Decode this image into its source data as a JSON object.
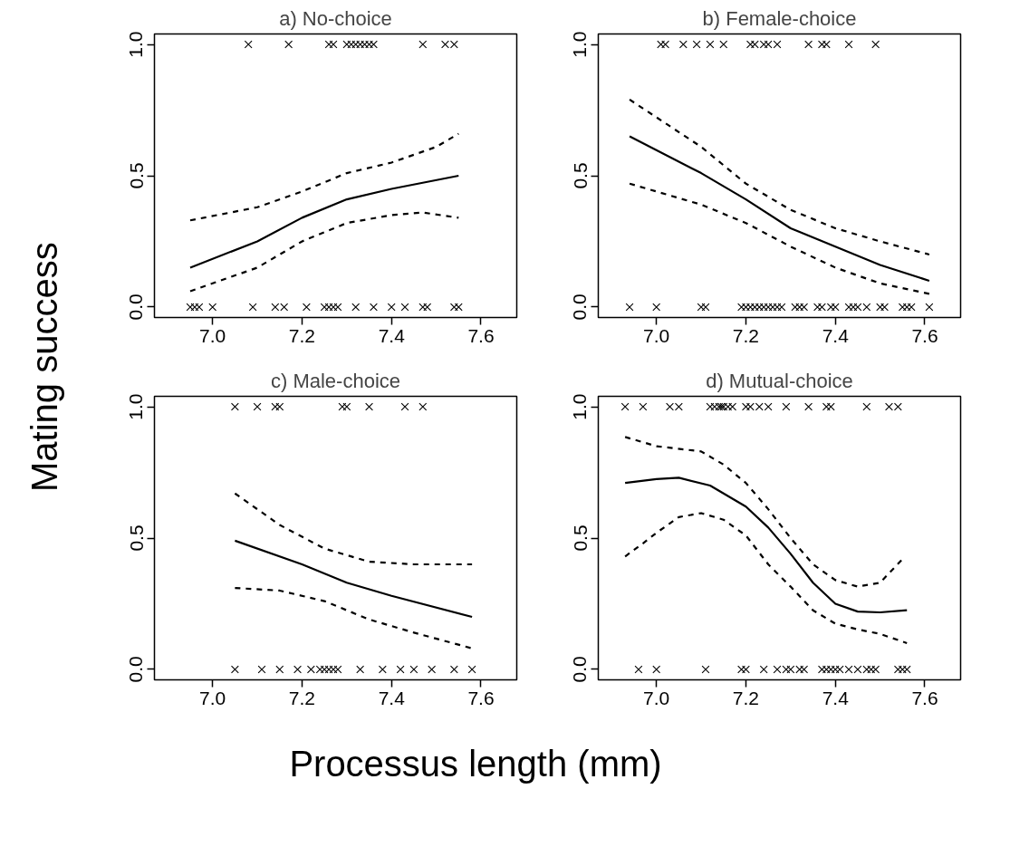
{
  "chart_data": [
    {
      "type": "line",
      "title": "a) No-choice",
      "ylabel": "Mating success",
      "xlim": [
        6.87,
        7.68
      ],
      "ylim": [
        -0.04,
        1.04
      ],
      "xticks": [
        {
          "value": 7.0,
          "label": "7.0"
        },
        {
          "value": 7.2,
          "label": "7.2"
        },
        {
          "value": 7.4,
          "label": "7.4"
        },
        {
          "value": 7.6,
          "label": "7.6"
        }
      ],
      "yticks": [
        {
          "value": 0,
          "label": "0.0"
        },
        {
          "value": 0.5,
          "label": "0.5"
        },
        {
          "value": 1,
          "label": "1.0"
        }
      ],
      "grid": false,
      "series": [
        {
          "type": "scatter",
          "marker": "cross",
          "color": "#000000",
          "x": [
            7.08,
            7.17,
            7.26,
            7.27,
            7.3,
            7.31,
            7.32,
            7.33,
            7.34,
            7.35,
            7.36,
            7.47,
            7.52,
            7.54
          ],
          "values": [
            1,
            1,
            1,
            1,
            1,
            1,
            1,
            1,
            1,
            1,
            1,
            1,
            1,
            1
          ]
        },
        {
          "type": "scatter",
          "marker": "cross",
          "color": "#000000",
          "x": [
            6.95,
            6.96,
            6.97,
            7.0,
            7.09,
            7.14,
            7.16,
            7.21,
            7.25,
            7.26,
            7.27,
            7.28,
            7.32,
            7.36,
            7.4,
            7.43,
            7.47,
            7.48,
            7.54,
            7.55
          ],
          "values": [
            0,
            0,
            0,
            0,
            0,
            0,
            0,
            0,
            0,
            0,
            0,
            0,
            0,
            0,
            0,
            0,
            0,
            0,
            0,
            0
          ]
        },
        {
          "line_style": "solid",
          "color": "#000000",
          "x": [
            6.95,
            7.1,
            7.2,
            7.3,
            7.4,
            7.55
          ],
          "values": [
            0.15,
            0.25,
            0.34,
            0.41,
            0.45,
            0.5
          ]
        },
        {
          "line_style": "dashed",
          "color": "#000000",
          "x": [
            6.95,
            7.1,
            7.2,
            7.3,
            7.4,
            7.5,
            7.55
          ],
          "values": [
            0.33,
            0.38,
            0.44,
            0.51,
            0.55,
            0.61,
            0.66
          ]
        },
        {
          "line_style": "dashed",
          "color": "#000000",
          "x": [
            6.95,
            7.1,
            7.2,
            7.3,
            7.4,
            7.47,
            7.55
          ],
          "values": [
            0.06,
            0.15,
            0.25,
            0.32,
            0.35,
            0.36,
            0.34
          ]
        }
      ]
    },
    {
      "type": "line",
      "title": "b) Female-choice",
      "xlim": [
        6.87,
        7.68
      ],
      "ylim": [
        -0.04,
        1.04
      ],
      "xticks": [
        {
          "value": 7.0,
          "label": "7.0"
        },
        {
          "value": 7.2,
          "label": "7.2"
        },
        {
          "value": 7.4,
          "label": "7.4"
        },
        {
          "value": 7.6,
          "label": "7.6"
        }
      ],
      "yticks": [
        {
          "value": 0,
          "label": "0.0"
        },
        {
          "value": 0.5,
          "label": "0.5"
        },
        {
          "value": 1,
          "label": "1.0"
        }
      ],
      "grid": false,
      "series": [
        {
          "type": "scatter",
          "marker": "cross",
          "color": "#000000",
          "x": [
            7.01,
            7.02,
            7.06,
            7.09,
            7.12,
            7.15,
            7.21,
            7.22,
            7.24,
            7.25,
            7.27,
            7.34,
            7.37,
            7.38,
            7.43,
            7.49
          ],
          "values": [
            1,
            1,
            1,
            1,
            1,
            1,
            1,
            1,
            1,
            1,
            1,
            1,
            1,
            1,
            1,
            1
          ]
        },
        {
          "type": "scatter",
          "marker": "cross",
          "color": "#000000",
          "x": [
            6.94,
            7.0,
            7.1,
            7.11,
            7.19,
            7.2,
            7.21,
            7.22,
            7.23,
            7.24,
            7.25,
            7.26,
            7.27,
            7.28,
            7.31,
            7.32,
            7.33,
            7.36,
            7.37,
            7.39,
            7.4,
            7.43,
            7.44,
            7.45,
            7.47,
            7.5,
            7.51,
            7.55,
            7.56,
            7.57,
            7.61
          ],
          "values": [
            0,
            0,
            0,
            0,
            0,
            0,
            0,
            0,
            0,
            0,
            0,
            0,
            0,
            0,
            0,
            0,
            0,
            0,
            0,
            0,
            0,
            0,
            0,
            0,
            0,
            0,
            0,
            0,
            0,
            0,
            0
          ]
        },
        {
          "line_style": "solid",
          "color": "#000000",
          "x": [
            6.94,
            7.1,
            7.2,
            7.3,
            7.4,
            7.5,
            7.61
          ],
          "values": [
            0.65,
            0.51,
            0.41,
            0.3,
            0.23,
            0.16,
            0.1
          ]
        },
        {
          "line_style": "dashed",
          "color": "#000000",
          "x": [
            6.94,
            7.1,
            7.2,
            7.3,
            7.4,
            7.5,
            7.61
          ],
          "values": [
            0.79,
            0.61,
            0.47,
            0.37,
            0.3,
            0.25,
            0.2
          ]
        },
        {
          "line_style": "dashed",
          "color": "#000000",
          "x": [
            6.94,
            7.1,
            7.2,
            7.3,
            7.4,
            7.5,
            7.61
          ],
          "values": [
            0.47,
            0.39,
            0.32,
            0.23,
            0.15,
            0.09,
            0.05
          ]
        }
      ]
    },
    {
      "type": "line",
      "title": "c) Male-choice",
      "xlabel": "Processus length (mm)",
      "xlim": [
        6.87,
        7.68
      ],
      "ylim": [
        -0.04,
        1.04
      ],
      "xticks": [
        {
          "value": 7.0,
          "label": "7.0"
        },
        {
          "value": 7.2,
          "label": "7.2"
        },
        {
          "value": 7.4,
          "label": "7.4"
        },
        {
          "value": 7.6,
          "label": "7.6"
        }
      ],
      "yticks": [
        {
          "value": 0,
          "label": "0.0"
        },
        {
          "value": 0.5,
          "label": "0.5"
        },
        {
          "value": 1,
          "label": "1.0"
        }
      ],
      "grid": false,
      "series": [
        {
          "type": "scatter",
          "marker": "cross",
          "color": "#000000",
          "x": [
            7.05,
            7.1,
            7.14,
            7.15,
            7.29,
            7.3,
            7.35,
            7.43,
            7.47
          ],
          "values": [
            1,
            1,
            1,
            1,
            1,
            1,
            1,
            1,
            1
          ]
        },
        {
          "type": "scatter",
          "marker": "cross",
          "color": "#000000",
          "x": [
            7.05,
            7.11,
            7.15,
            7.19,
            7.22,
            7.24,
            7.25,
            7.26,
            7.27,
            7.28,
            7.33,
            7.38,
            7.42,
            7.45,
            7.49,
            7.54,
            7.58
          ],
          "values": [
            0,
            0,
            0,
            0,
            0,
            0,
            0,
            0,
            0,
            0,
            0,
            0,
            0,
            0,
            0,
            0,
            0
          ]
        },
        {
          "line_style": "solid",
          "color": "#000000",
          "x": [
            7.05,
            7.2,
            7.3,
            7.4,
            7.58
          ],
          "values": [
            0.49,
            0.4,
            0.33,
            0.28,
            0.2
          ]
        },
        {
          "line_style": "dashed",
          "color": "#000000",
          "x": [
            7.05,
            7.15,
            7.25,
            7.35,
            7.45,
            7.58
          ],
          "values": [
            0.67,
            0.55,
            0.46,
            0.41,
            0.4,
            0.4
          ]
        },
        {
          "line_style": "dashed",
          "color": "#000000",
          "x": [
            7.05,
            7.15,
            7.25,
            7.35,
            7.45,
            7.58
          ],
          "values": [
            0.31,
            0.3,
            0.26,
            0.19,
            0.14,
            0.08
          ]
        }
      ]
    },
    {
      "type": "line",
      "title": "d) Mutual-choice",
      "xlim": [
        6.87,
        7.68
      ],
      "ylim": [
        -0.04,
        1.04
      ],
      "xticks": [
        {
          "value": 7.0,
          "label": "7.0"
        },
        {
          "value": 7.2,
          "label": "7.2"
        },
        {
          "value": 7.4,
          "label": "7.4"
        },
        {
          "value": 7.6,
          "label": "7.6"
        }
      ],
      "yticks": [
        {
          "value": 0,
          "label": "0.0"
        },
        {
          "value": 0.5,
          "label": "0.5"
        },
        {
          "value": 1,
          "label": "1.0"
        }
      ],
      "grid": false,
      "series": [
        {
          "type": "scatter",
          "marker": "cross",
          "color": "#000000",
          "x": [
            6.93,
            6.97,
            7.03,
            7.05,
            7.12,
            7.13,
            7.14,
            7.145,
            7.15,
            7.16,
            7.17,
            7.2,
            7.21,
            7.23,
            7.25,
            7.29,
            7.34,
            7.38,
            7.39,
            7.47,
            7.52,
            7.54
          ],
          "values": [
            1,
            1,
            1,
            1,
            1,
            1,
            1,
            1,
            1,
            1,
            1,
            1,
            1,
            1,
            1,
            1,
            1,
            1,
            1,
            1,
            1,
            1
          ]
        },
        {
          "type": "scatter",
          "marker": "cross",
          "color": "#000000",
          "x": [
            6.96,
            7.0,
            7.11,
            7.19,
            7.2,
            7.24,
            7.27,
            7.29,
            7.3,
            7.32,
            7.33,
            7.37,
            7.38,
            7.39,
            7.4,
            7.41,
            7.43,
            7.45,
            7.47,
            7.48,
            7.49,
            7.54,
            7.55,
            7.56
          ],
          "values": [
            0,
            0,
            0,
            0,
            0,
            0,
            0,
            0,
            0,
            0,
            0,
            0,
            0,
            0,
            0,
            0,
            0,
            0,
            0,
            0,
            0,
            0,
            0,
            0
          ]
        },
        {
          "line_style": "solid",
          "color": "#000000",
          "x": [
            6.93,
            7.0,
            7.05,
            7.12,
            7.2,
            7.25,
            7.3,
            7.35,
            7.4,
            7.45,
            7.5,
            7.56
          ],
          "values": [
            0.71,
            0.725,
            0.73,
            0.7,
            0.62,
            0.54,
            0.44,
            0.33,
            0.25,
            0.22,
            0.217,
            0.225
          ]
        },
        {
          "line_style": "dashed",
          "color": "#000000",
          "x": [
            6.93,
            7.0,
            7.1,
            7.15,
            7.2,
            7.25,
            7.3,
            7.35,
            7.4,
            7.45,
            7.5,
            7.55
          ],
          "values": [
            0.885,
            0.85,
            0.83,
            0.78,
            0.71,
            0.61,
            0.5,
            0.4,
            0.34,
            0.315,
            0.33,
            0.42
          ]
        },
        {
          "line_style": "dashed",
          "color": "#000000",
          "x": [
            6.93,
            6.97,
            7.0,
            7.05,
            7.1,
            7.15,
            7.2,
            7.25,
            7.3,
            7.35,
            7.4,
            7.45,
            7.5,
            7.56
          ],
          "values": [
            0.43,
            0.48,
            0.52,
            0.58,
            0.595,
            0.57,
            0.51,
            0.4,
            0.315,
            0.225,
            0.174,
            0.152,
            0.135,
            0.1
          ]
        }
      ]
    }
  ]
}
